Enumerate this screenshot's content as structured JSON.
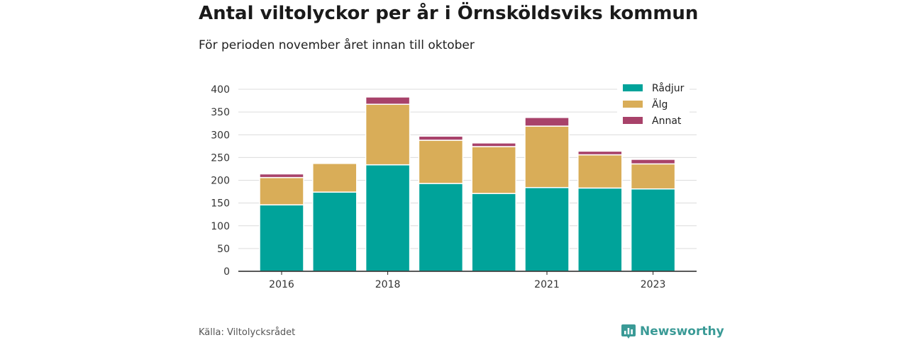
{
  "header": {
    "title": "Antal viltolyckor per år i Örnsköldsviks kommun",
    "subtitle": "För perioden november året innan till oktober"
  },
  "footer": {
    "source": "Källa: Viltolycksrådet",
    "brand": "Newsworthy"
  },
  "colors": {
    "radjur": "#00a39a",
    "alg": "#d9ad58",
    "annat": "#a8426a",
    "brand": "#3a9a96"
  },
  "chart_data": {
    "type": "bar",
    "stacked": true,
    "categories": [
      "2016",
      "2017",
      "2018",
      "2019",
      "2020",
      "2021",
      "2022",
      "2023"
    ],
    "x_tick_labels": [
      "2016",
      "",
      "2018",
      "",
      "",
      "2021",
      "",
      "2023"
    ],
    "series": [
      {
        "name": "Rådjur",
        "color": "#00a39a",
        "values": [
          146,
          174,
          234,
          193,
          171,
          184,
          183,
          181
        ]
      },
      {
        "name": "Älg",
        "color": "#d9ad58",
        "values": [
          60,
          63,
          133,
          95,
          103,
          135,
          73,
          55
        ]
      },
      {
        "name": "Annat",
        "color": "#a8426a",
        "values": [
          8,
          0,
          16,
          9,
          8,
          19,
          8,
          10
        ]
      }
    ],
    "ylim": [
      0,
      400
    ],
    "yticks": [
      0,
      50,
      100,
      150,
      200,
      250,
      300,
      350,
      400
    ],
    "grid": true,
    "legend": "top-right"
  }
}
